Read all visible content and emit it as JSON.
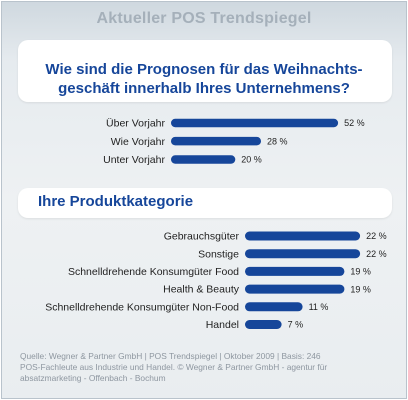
{
  "title": "Aktueller POS Trendspiegel",
  "chart_data": [
    {
      "type": "bar",
      "orientation": "horizontal",
      "title_lines": [
        "Wie sind die Prognosen für das Weihnachts-",
        "geschäft innerhalb Ihres Unternehmens?"
      ],
      "categories": [
        "Über Vorjahr",
        "Wie Vorjahr",
        "Unter Vorjahr"
      ],
      "values": [
        52,
        28,
        20
      ],
      "value_labels": [
        "52 %",
        "28 %",
        "20 %"
      ],
      "unit": "%",
      "xlim": [
        0,
        56
      ],
      "grid": false,
      "color": "#16469a"
    },
    {
      "type": "bar",
      "orientation": "horizontal",
      "title": "Ihre Produktkategorie",
      "categories": [
        "Gebrauchsgüter",
        "Sonstige",
        "Schnelldrehende Konsumgüter Food",
        "Health & Beauty",
        "Schnelldrehende Konsumgüter Non-Food",
        "Handel"
      ],
      "values": [
        22,
        22,
        19,
        19,
        11,
        7
      ],
      "value_labels": [
        "22 %",
        "22 %",
        "19 %",
        "19 %",
        "11 %",
        "7 %"
      ],
      "unit": "%",
      "xlim": [
        0,
        23.5
      ],
      "grid": false,
      "color": "#16469a"
    }
  ],
  "source_lines": [
    "Quelle: Wegner & Partner GmbH | POS Trendspiegel | Oktober 2009 | Basis: 246",
    "POS-Fachleute aus Industrie und Handel. © Wegner & Partner GmbH - agentur für",
    "absatzmarketing - Offenbach - Bochum"
  ]
}
